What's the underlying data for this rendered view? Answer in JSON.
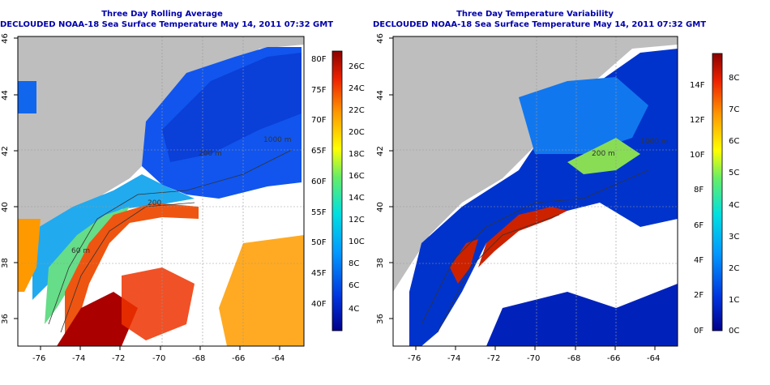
{
  "panels": [
    {
      "title_line1": "Three Day Rolling Average",
      "title_line2": "DECLOUDED NOAA-18 Sea Surface Temperature May 14, 2011 07:32 GMT",
      "x_ticks": [
        "-76",
        "-74",
        "-72",
        "-70",
        "-68",
        "-66",
        "-64"
      ],
      "y_ticks": [
        "46",
        "44",
        "42",
        "40",
        "38",
        "36"
      ],
      "contour_labels": [
        "1000 m",
        "200 m",
        "200",
        "60 m"
      ],
      "colorbar_left": [
        "80F",
        "75F",
        "70F",
        "65F",
        "60F",
        "55F",
        "50F",
        "45F",
        "40F"
      ],
      "colorbar_right": [
        "26C",
        "24C",
        "22C",
        "20C",
        "18C",
        "16C",
        "14C",
        "12C",
        "10C",
        "8C",
        "6C",
        "4C"
      ]
    },
    {
      "title_line1": "Three Day Temperature Variability",
      "title_line2": "DECLOUDED NOAA-18 Sea Surface Temperature May 14, 2011 07:32 GMT",
      "x_ticks": [
        "-76",
        "-74",
        "-72",
        "-70",
        "-68",
        "-66",
        "-64"
      ],
      "y_ticks": [
        "46",
        "44",
        "42",
        "40",
        "38",
        "36"
      ],
      "contour_labels": [
        "1000 m",
        "200 m",
        "1000"
      ],
      "colorbar_left": [
        "14F",
        "12F",
        "10F",
        "8F",
        "6F",
        "4F",
        "2F",
        "0F"
      ],
      "colorbar_right": [
        "8C",
        "7C",
        "6C",
        "5C",
        "4C",
        "3C",
        "2C",
        "1C",
        "0C"
      ]
    }
  ],
  "colors": {
    "title": "#0000aa",
    "land": "#bebebe",
    "cloud": "#ffffff"
  }
}
